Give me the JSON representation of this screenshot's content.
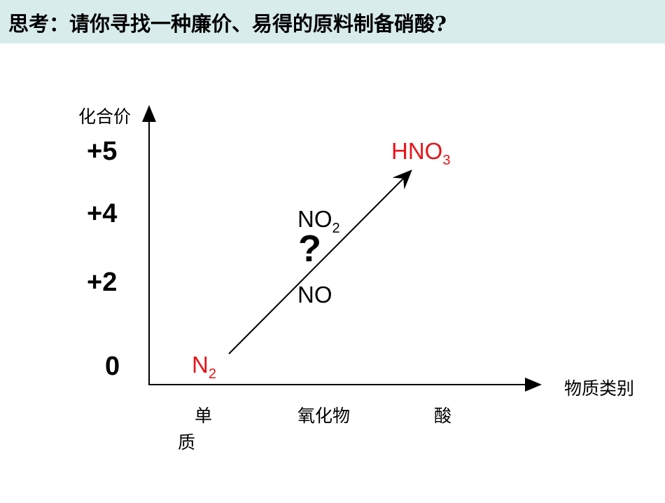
{
  "header": {
    "title": "思考：请你寻找一种廉价、易得的原料制备硝酸?"
  },
  "axes": {
    "y_label": "化合价",
    "x_label": "物质类别",
    "y_ticks": [
      "+5",
      "+4",
      "+2",
      "0"
    ],
    "x_categories": [
      {
        "lines": [
          "单",
          "质"
        ]
      },
      {
        "lines": [
          "氧化物"
        ]
      },
      {
        "lines": [
          "酸"
        ]
      }
    ]
  },
  "species": [
    {
      "text": "N",
      "sub": "2"
    },
    {
      "text": "NO",
      "sub": "2"
    },
    {
      "text": "NO"
    },
    {
      "text": "HNO",
      "sub": "3"
    }
  ],
  "question": "?"
}
